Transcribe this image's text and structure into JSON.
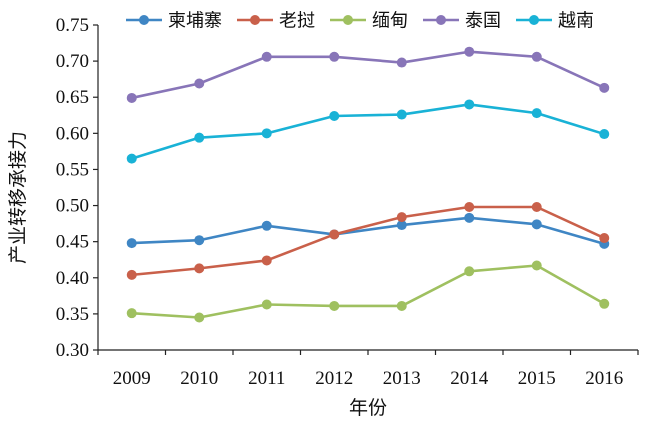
{
  "chart_data": {
    "type": "line",
    "title": "",
    "xlabel": "年份",
    "ylabel": "产业转移承接力",
    "categories": [
      "2009",
      "2010",
      "2011",
      "2012",
      "2013",
      "2014",
      "2015",
      "2016"
    ],
    "ylim": [
      0.3,
      0.75
    ],
    "yticks": [
      "0.30",
      "0.35",
      "0.40",
      "0.45",
      "0.50",
      "0.55",
      "0.60",
      "0.65",
      "0.70",
      "0.75"
    ],
    "grid": false,
    "legend_position": "top",
    "series": [
      {
        "name": "柬埔寨",
        "color": "#3f86c4",
        "values": [
          0.448,
          0.452,
          0.472,
          0.46,
          0.473,
          0.483,
          0.474,
          0.447
        ]
      },
      {
        "name": "老挝",
        "color": "#c9604a",
        "values": [
          0.404,
          0.413,
          0.424,
          0.46,
          0.484,
          0.498,
          0.498,
          0.455
        ]
      },
      {
        "name": "缅甸",
        "color": "#9fc060",
        "values": [
          0.351,
          0.345,
          0.363,
          0.361,
          0.361,
          0.409,
          0.417,
          0.364
        ]
      },
      {
        "name": "泰国",
        "color": "#8875b8",
        "values": [
          0.649,
          0.669,
          0.706,
          0.706,
          0.698,
          0.713,
          0.706,
          0.663
        ]
      },
      {
        "name": "越南",
        "color": "#19b2d6",
        "values": [
          0.565,
          0.594,
          0.6,
          0.624,
          0.626,
          0.64,
          0.628,
          0.599
        ]
      }
    ]
  }
}
